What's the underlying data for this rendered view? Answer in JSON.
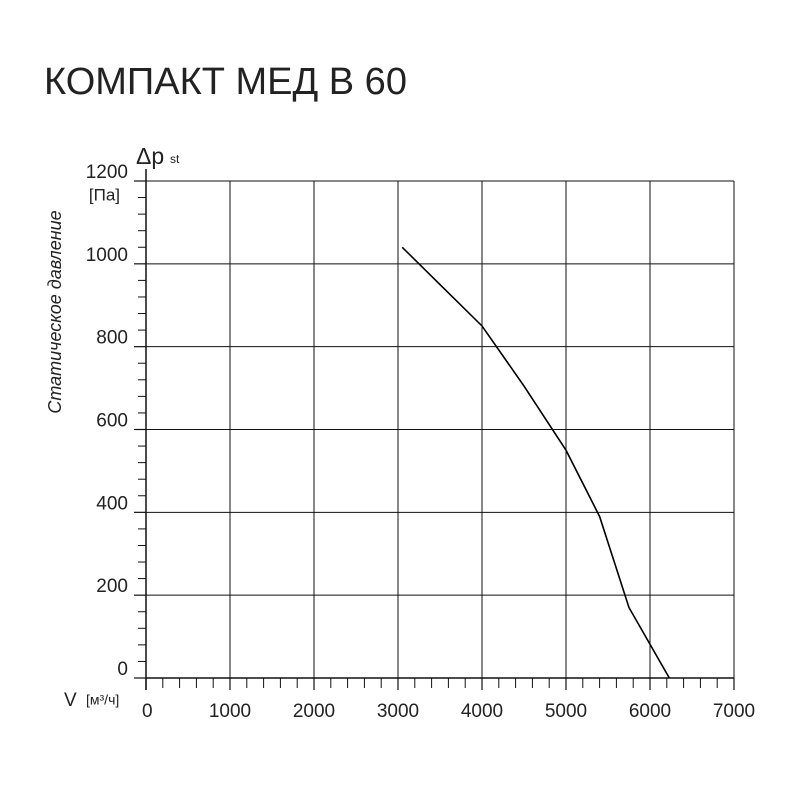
{
  "chart_data": {
    "type": "line",
    "title": "КОМПАКТ МЕД В 60",
    "y_label": "Статическое давление",
    "y_unit": "[Па]",
    "y_symbol": "Δp",
    "y_symbol_sub": "st",
    "x_label": "V",
    "x_unit": "[м³/ч]",
    "x": [
      3050,
      3500,
      4000,
      4500,
      5000,
      5400,
      5750,
      6230
    ],
    "series": [
      {
        "name": "КОМПАКТ МЕД В 60",
        "color": "#000000",
        "values": [
          1040,
          950,
          850,
          705,
          550,
          390,
          170,
          0
        ]
      }
    ],
    "xlim": [
      0,
      7000
    ],
    "xticks": [
      0,
      1000,
      2000,
      3000,
      4000,
      5000,
      6000,
      7000
    ],
    "ylim": [
      0,
      1200
    ],
    "yticks": [
      0,
      200,
      400,
      600,
      800,
      1000,
      1200
    ],
    "grid": true
  }
}
